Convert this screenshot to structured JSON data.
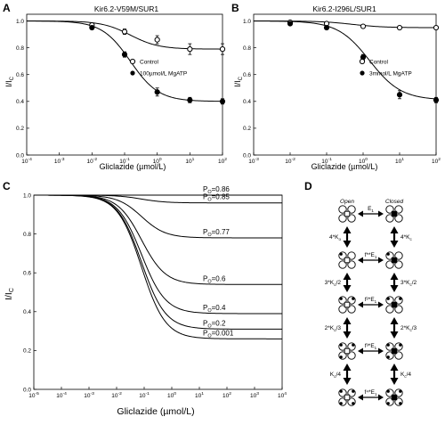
{
  "panel_letters": [
    "A",
    "B",
    "C",
    "D"
  ],
  "chart_data": [
    {
      "panel": "A",
      "type": "scatter",
      "title": "Kir6.2-V59M/SUR1",
      "xlabel": "Gliclazide (µmol/L)",
      "ylabel": "I/I",
      "ylabel_sub": "C",
      "xscale": "log",
      "xlim": [
        0.0001,
        100
      ],
      "ylim": [
        0.0,
        1.05
      ],
      "x_tick_values": [
        0.0001,
        0.001,
        0.01,
        0.1,
        1,
        10,
        100
      ],
      "x_tick_labels": [
        "10",
        "10",
        "10",
        "10",
        "10",
        "10",
        "10"
      ],
      "x_tick_exponents": [
        "-4",
        "-3",
        "-2",
        "-1",
        "0",
        "1",
        "2"
      ],
      "y_tick_values": [
        0.0,
        0.2,
        0.4,
        0.6,
        0.8,
        1.0
      ],
      "y_tick_labels": [
        "0.0",
        "0.2",
        "0.4",
        "0.6",
        "0.8",
        "1.0"
      ],
      "legend": [
        "Control",
        "100µmol/L MgATP"
      ],
      "series": [
        {
          "name": "Control",
          "marker": "open-circle",
          "x": [
            0.01,
            0.1,
            1,
            10,
            100
          ],
          "y": [
            0.97,
            0.92,
            0.86,
            0.79,
            0.79
          ],
          "err": [
            0.01,
            0.02,
            0.03,
            0.04,
            0.04
          ],
          "fit": {
            "baseline": 0.79,
            "ic50": 0.15,
            "hill": 1
          }
        },
        {
          "name": "100µmol/L MgATP",
          "marker": "filled-circle",
          "x": [
            0.01,
            0.1,
            1,
            10,
            100
          ],
          "y": [
            0.95,
            0.75,
            0.47,
            0.41,
            0.4
          ],
          "err": [
            0.01,
            0.02,
            0.03,
            0.02,
            0.02
          ],
          "fit": {
            "baseline": 0.4,
            "ic50": 0.15,
            "hill": 1
          }
        }
      ]
    },
    {
      "panel": "B",
      "type": "scatter",
      "title": "Kir6.2-I296L/SUR1",
      "xlabel": "Gliclazide (µmol/L)",
      "ylabel": "I/I",
      "ylabel_sub": "C",
      "xscale": "log",
      "xlim": [
        0.001,
        100
      ],
      "ylim": [
        0.0,
        1.05
      ],
      "x_tick_values": [
        0.001,
        0.01,
        0.1,
        1,
        10,
        100
      ],
      "x_tick_labels": [
        "10",
        "10",
        "10",
        "10",
        "10",
        "10"
      ],
      "x_tick_exponents": [
        "-3",
        "-2",
        "-1",
        "0",
        "1",
        "2"
      ],
      "y_tick_values": [
        0.0,
        0.2,
        0.4,
        0.6,
        0.8,
        1.0
      ],
      "y_tick_labels": [
        "0.0",
        "0.2",
        "0.4",
        "0.6",
        "0.8",
        "1.0"
      ],
      "legend": [
        "Control",
        "3mmol/L MgATP"
      ],
      "series": [
        {
          "name": "Control",
          "marker": "open-circle",
          "x": [
            0.01,
            0.1,
            1,
            10,
            100
          ],
          "y": [
            0.99,
            0.98,
            0.96,
            0.95,
            0.95
          ],
          "err": [
            0.005,
            0.005,
            0.005,
            0.01,
            0.01
          ],
          "fit": {
            "baseline": 0.95,
            "ic50": 0.5,
            "hill": 1
          }
        },
        {
          "name": "3mmol/L MgATP",
          "marker": "filled-circle",
          "x": [
            0.01,
            0.1,
            1,
            10,
            100
          ],
          "y": [
            0.98,
            0.95,
            0.73,
            0.45,
            0.41
          ],
          "err": [
            0.005,
            0.01,
            0.02,
            0.03,
            0.02
          ],
          "fit": {
            "baseline": 0.41,
            "ic50": 1.5,
            "hill": 1
          }
        }
      ]
    },
    {
      "panel": "C",
      "type": "line",
      "xlabel": "Gliclazide (µmol/L)",
      "ylabel": "I/I",
      "ylabel_sub": "C",
      "xscale": "log",
      "xlim": [
        1e-05,
        10000
      ],
      "ylim": [
        0.0,
        1.0
      ],
      "x_tick_values": [
        1e-05,
        0.0001,
        0.001,
        0.01,
        0.1,
        1,
        10,
        100,
        1000,
        10000
      ],
      "x_tick_labels": [
        "10",
        "10",
        "10",
        "10",
        "10",
        "10",
        "10",
        "10",
        "10",
        "10"
      ],
      "x_tick_exponents": [
        "-5",
        "-4",
        "-3",
        "-2",
        "-1",
        "0",
        "1",
        "2",
        "3",
        "4"
      ],
      "y_tick_values": [
        0.0,
        0.2,
        0.4,
        0.6,
        0.8,
        1.0
      ],
      "y_tick_labels": [
        "0.0",
        "0.2",
        "0.4",
        "0.6",
        "0.8",
        "1.0"
      ],
      "series": [
        {
          "label": "P",
          "label_sub": "O",
          "label_value": "=0.86",
          "plateau": 1.0,
          "ic50": 0.08
        },
        {
          "label": "P",
          "label_sub": "O",
          "label_value": "=0.85",
          "plateau": 0.96,
          "ic50": 0.08
        },
        {
          "label": "P",
          "label_sub": "O",
          "label_value": "=0.77",
          "plateau": 0.78,
          "ic50": 0.08
        },
        {
          "label": "P",
          "label_sub": "O",
          "label_value": "=0.6",
          "plateau": 0.54,
          "ic50": 0.08
        },
        {
          "label": "P",
          "label_sub": "O",
          "label_value": "=0.4",
          "plateau": 0.39,
          "ic50": 0.08
        },
        {
          "label": "P",
          "label_sub": "O",
          "label_value": "=0.2",
          "plateau": 0.31,
          "ic50": 0.08
        },
        {
          "label": "P",
          "label_sub": "O",
          "label_value": "=0.001",
          "plateau": 0.26,
          "ic50": 0.08
        }
      ]
    }
  ],
  "diagram_d": {
    "col_open": "Open",
    "col_closed": "Closed",
    "horizontal": [
      {
        "text": "E",
        "sub": "1",
        "prefix": ""
      },
      {
        "text": "E",
        "sub": "1",
        "prefix": "f**"
      },
      {
        "text": "E",
        "sub": "1",
        "prefix": "f²*"
      },
      {
        "text": "E",
        "sub": "1",
        "prefix": "f³*"
      },
      {
        "text": "E",
        "sub": "1",
        "prefix": "f⁴*"
      }
    ],
    "vertical_left": [
      {
        "text": "4*K",
        "sub": "o"
      },
      {
        "text": "3*K",
        "sub": "o",
        "suffix": "/2"
      },
      {
        "text": "2*K",
        "sub": "o",
        "suffix": "/3"
      },
      {
        "text": "K",
        "sub": "o",
        "suffix": "/4"
      }
    ],
    "vertical_right": [
      {
        "text": "4*K",
        "sub": "c"
      },
      {
        "text": "3*K",
        "sub": "c",
        "suffix": "/2"
      },
      {
        "text": "2*K",
        "sub": "c",
        "suffix": "/3"
      },
      {
        "text": "K",
        "sub": "c",
        "suffix": "/4"
      }
    ]
  }
}
